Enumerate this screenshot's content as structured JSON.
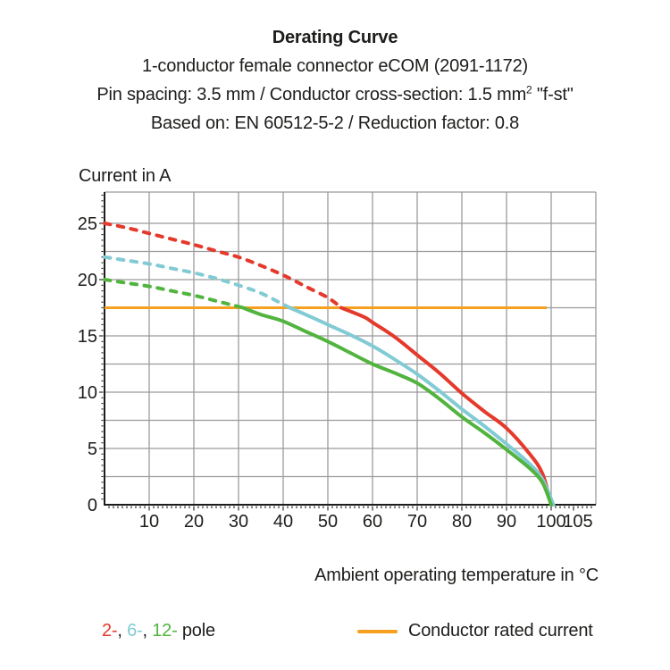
{
  "figure": {
    "title": "Derating Curve",
    "subtitle1": "1-conductor female connector eCOM (2091-1172)",
    "subtitle2_prefix": "Pin spacing: 3.5 mm / Conductor cross-section: 1.5 mm",
    "subtitle2_sup": "2",
    "subtitle2_suffix": " \"f-st\"",
    "subtitle3": "Based on: EN 60512-5-2 / Reduction factor: 0.8"
  },
  "axes": {
    "y_title": "Current in A",
    "x_title": "Ambient operating temperature in °C"
  },
  "legend": {
    "poles": [
      {
        "name": "2-pole",
        "label": "2-",
        "color": "#e5392c"
      },
      {
        "name": "6-pole",
        "label": "6-",
        "color": "#82cbd4"
      },
      {
        "name": "12-pole",
        "label": "12-",
        "color": "#52b43f"
      }
    ],
    "separator": ", ",
    "suffix": " pole",
    "rated_label": "Conductor rated current",
    "rated_color": "#f5a01e"
  },
  "chart_data": {
    "type": "line",
    "title": "Derating Curve",
    "xlabel": "Ambient operating temperature in °C",
    "ylabel": "Current in A",
    "xlim": [
      0,
      110
    ],
    "ylim": [
      0,
      27.8
    ],
    "x_grid_step": 10,
    "y_grid_step": 2.5,
    "y_grid_max": 25,
    "x_major_ticks": [
      10,
      20,
      30,
      40,
      50,
      60,
      70,
      80,
      90,
      100,
      105
    ],
    "y_major_ticks": [
      0,
      5,
      10,
      15,
      20,
      25
    ],
    "grid_color": "#9b9b9b",
    "axis_color": "#1d1d1b",
    "rated_current": {
      "label": "Conductor rated current",
      "value": 17.5,
      "x_start": 0,
      "x_end": 99,
      "color": "#f5a01e"
    },
    "series": [
      {
        "name": "2-pole",
        "color": "#e5392c",
        "style_note": "dashed above rated current, solid below",
        "dashed_points": [
          [
            0,
            25.0
          ],
          [
            5,
            24.6
          ],
          [
            10,
            24.1
          ],
          [
            15,
            23.6
          ],
          [
            20,
            23.1
          ],
          [
            25,
            22.55
          ],
          [
            30,
            22.0
          ],
          [
            35,
            21.25
          ],
          [
            40,
            20.4
          ],
          [
            45,
            19.4
          ],
          [
            50,
            18.4
          ],
          [
            53,
            17.5
          ]
        ],
        "solid_points": [
          [
            53,
            17.5
          ],
          [
            58,
            16.7
          ],
          [
            60,
            16.2
          ],
          [
            65,
            14.9
          ],
          [
            70,
            13.3
          ],
          [
            75,
            11.7
          ],
          [
            80,
            9.9
          ],
          [
            85,
            8.3
          ],
          [
            90,
            6.8
          ],
          [
            95,
            4.6
          ],
          [
            98,
            2.8
          ],
          [
            100,
            0
          ]
        ]
      },
      {
        "name": "6-pole",
        "color": "#82cbd4",
        "style_note": "dashed above rated current, solid below",
        "dashed_points": [
          [
            0,
            22.0
          ],
          [
            5,
            21.7
          ],
          [
            10,
            21.4
          ],
          [
            15,
            21.0
          ],
          [
            20,
            20.6
          ],
          [
            25,
            20.1
          ],
          [
            30,
            19.5
          ],
          [
            35,
            18.8
          ],
          [
            40,
            17.8
          ],
          [
            41.5,
            17.5
          ]
        ],
        "solid_points": [
          [
            41.5,
            17.5
          ],
          [
            45,
            16.9
          ],
          [
            50,
            16.0
          ],
          [
            55,
            15.1
          ],
          [
            60,
            14.1
          ],
          [
            65,
            12.9
          ],
          [
            70,
            11.6
          ],
          [
            75,
            10.1
          ],
          [
            80,
            8.5
          ],
          [
            85,
            7.0
          ],
          [
            90,
            5.4
          ],
          [
            95,
            3.7
          ],
          [
            98,
            2.3
          ],
          [
            100.5,
            0
          ]
        ]
      },
      {
        "name": "12-pole",
        "color": "#52b43f",
        "style_note": "dashed above rated current, solid below",
        "dashed_points": [
          [
            0,
            20.0
          ],
          [
            5,
            19.7
          ],
          [
            10,
            19.4
          ],
          [
            15,
            19.0
          ],
          [
            20,
            18.6
          ],
          [
            25,
            18.1
          ],
          [
            30,
            17.6
          ],
          [
            31,
            17.5
          ]
        ],
        "solid_points": [
          [
            31,
            17.5
          ],
          [
            35,
            16.9
          ],
          [
            40,
            16.3
          ],
          [
            45,
            15.4
          ],
          [
            50,
            14.5
          ],
          [
            55,
            13.5
          ],
          [
            60,
            12.5
          ],
          [
            65,
            11.7
          ],
          [
            70,
            10.8
          ],
          [
            75,
            9.4
          ],
          [
            80,
            7.8
          ],
          [
            85,
            6.4
          ],
          [
            90,
            4.9
          ],
          [
            95,
            3.3
          ],
          [
            98,
            2.0
          ],
          [
            100,
            0
          ]
        ]
      }
    ]
  }
}
